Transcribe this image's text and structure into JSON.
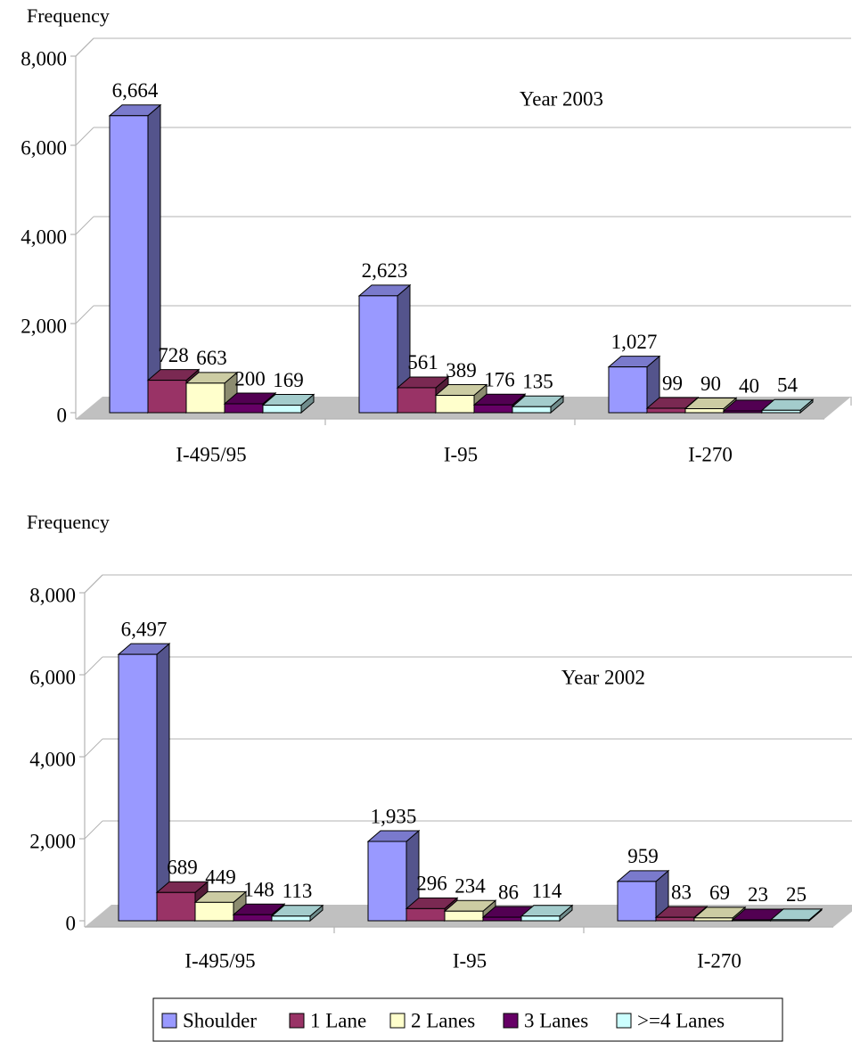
{
  "chart_data": [
    {
      "type": "bar3d",
      "y_label": "Frequency",
      "annotation": "Year 2003",
      "categories": [
        "I-495/95",
        "I-95",
        "I-270"
      ],
      "series": [
        {
          "name": "Shoulder",
          "color": "#9999ff",
          "values": [
            6664,
            2623,
            1027
          ],
          "value_labels": [
            "6,664",
            "2,623",
            "1,027"
          ]
        },
        {
          "name": "1 Lane",
          "color": "#993366",
          "values": [
            728,
            561,
            99
          ]
        },
        {
          "name": "2 Lanes",
          "color": "#ffffcc",
          "values": [
            663,
            389,
            90
          ]
        },
        {
          "name": "3 Lanes",
          "color": "#660066",
          "values": [
            200,
            176,
            40
          ]
        },
        {
          "name": ">=4 Lanes",
          "color": "#ccffff",
          "values": [
            169,
            135,
            54
          ]
        }
      ],
      "ylim": [
        0,
        8000
      ],
      "yticks": [
        0,
        {
          "value": 2000,
          "label": "2,000"
        },
        {
          "value": 4000,
          "label": "4,000"
        },
        {
          "value": 6000,
          "label": "6,000"
        },
        {
          "value": 8000,
          "label": "8,000"
        }
      ],
      "grid": true
    },
    {
      "type": "bar3d",
      "y_label": "Frequency",
      "annotation": "Year 2002",
      "categories": [
        "I-495/95",
        "I-95",
        "I-270"
      ],
      "series": [
        {
          "values": [
            6497,
            1935,
            959
          ],
          "value_labels": [
            "6,497",
            "1,935",
            "959"
          ]
        },
        {
          "values": [
            689,
            296,
            83
          ]
        },
        {
          "values": [
            449,
            234,
            69
          ]
        },
        {
          "values": [
            148,
            86,
            23
          ]
        },
        {
          "values": [
            113,
            114,
            25
          ]
        }
      ],
      "ylim": [
        0,
        8000
      ],
      "yticks": [
        0,
        {
          "value": 2000,
          "label": "2,000"
        },
        {
          "value": 4000,
          "label": "4,000"
        },
        {
          "value": 6000,
          "label": "6,000"
        },
        {
          "value": 8000,
          "label": "8,000"
        }
      ],
      "grid": true
    }
  ]
}
